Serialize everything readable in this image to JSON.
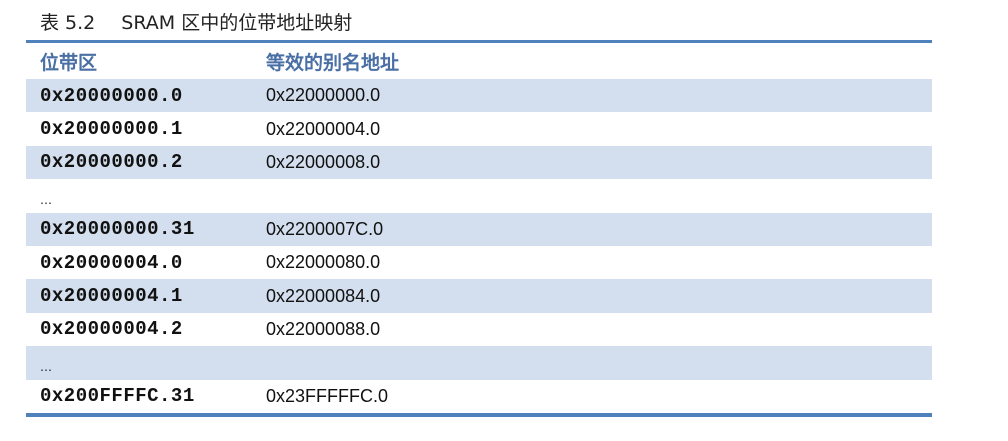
{
  "caption": {
    "number": "表 5.2",
    "title": "SRAM 区中的位带地址映射"
  },
  "table": {
    "headers": [
      "位带区",
      "等效的别名地址"
    ],
    "rows": [
      [
        "0x20000000.0",
        "0x22000000.0"
      ],
      [
        "0x20000000.1",
        "0x22000004.0"
      ],
      [
        "0x20000000.2",
        "0x22000008.0"
      ],
      [
        "…",
        ""
      ],
      [
        "0x20000000.31",
        "0x2200007C.0"
      ],
      [
        "0x20000004.0",
        "0x22000080.0"
      ],
      [
        "0x20000004.1",
        "0x22000084.0"
      ],
      [
        "0x20000004.2",
        "0x22000088.0"
      ],
      [
        "…",
        ""
      ],
      [
        "0x200FFFFC.31",
        "0x23FFFFFC.0"
      ]
    ]
  },
  "colors": {
    "accent": "#4f81bd",
    "band": "#d3dfee",
    "header_text": "#4a6fa5"
  }
}
